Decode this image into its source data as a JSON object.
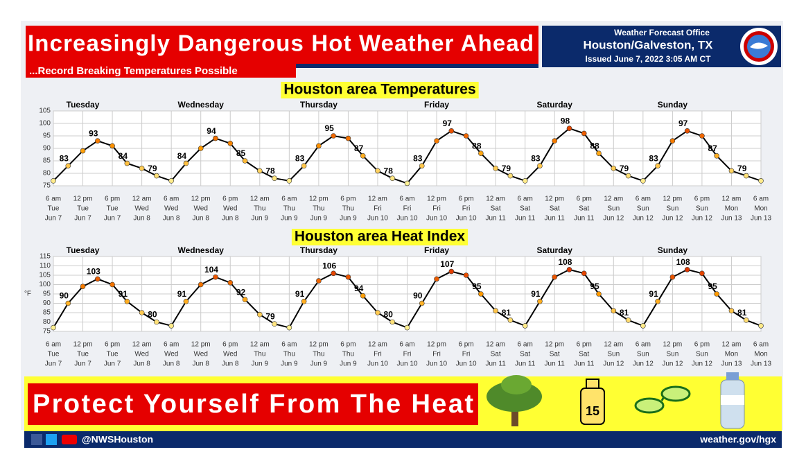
{
  "header": {
    "title": "Increasingly Dangerous Hot Weather Ahead",
    "subtitle": "...Record Breaking Temperatures Possible",
    "office": "Weather Forecast Office",
    "location": "Houston/Galveston, TX",
    "issued": "Issued June 7, 2022 3:05 AM CT"
  },
  "banner": "Protect Yourself From The Heat",
  "footer": {
    "handle": "@NWSHouston",
    "site": "weather.gov/hgx"
  },
  "chart_data": [
    {
      "type": "line",
      "title": "Houston area Temperatures",
      "day_labels": [
        "Tuesday",
        "Wednesday",
        "Thursday",
        "Friday",
        "Saturday",
        "Sunday"
      ],
      "x": [
        0,
        3,
        6,
        9,
        12,
        15,
        18,
        21,
        24,
        27,
        30,
        33,
        36,
        39,
        42,
        45,
        48,
        51,
        54,
        57,
        60,
        63,
        66,
        69,
        72,
        75,
        78,
        81,
        84,
        87,
        90,
        93,
        96,
        99,
        102,
        105,
        108,
        111,
        114,
        117,
        120,
        123,
        126,
        129,
        132,
        135,
        138,
        141,
        144
      ],
      "series": [
        {
          "name": "Temperature",
          "color": "#000000",
          "values": [
            77,
            83,
            89,
            93,
            91,
            84,
            82,
            79,
            77,
            84,
            90,
            94,
            92,
            85,
            81,
            78,
            77,
            83,
            91,
            95,
            94,
            87,
            81,
            78,
            76,
            83,
            93,
            97,
            95,
            88,
            82,
            79,
            77,
            83,
            93,
            98,
            96,
            88,
            82,
            79,
            77,
            83,
            93,
            97,
            95,
            87,
            81,
            79,
            77
          ]
        }
      ],
      "labels": {
        "x": [
          3,
          9,
          15,
          21,
          27,
          33,
          39,
          45,
          51,
          57,
          63,
          69,
          75,
          81,
          87,
          93,
          99,
          105,
          111,
          117,
          123,
          129,
          135,
          141
        ],
        "values": [
          83,
          93,
          84,
          79,
          84,
          94,
          85,
          78,
          83,
          95,
          87,
          78,
          83,
          97,
          88,
          79,
          83,
          98,
          88,
          79,
          83,
          97,
          87,
          79
        ]
      },
      "point_color_scale": [
        "#fff8a0",
        "#ff9a00",
        "#d00000"
      ],
      "xlim": [
        0,
        144
      ],
      "ylim": [
        75,
        105
      ],
      "yticks": [
        75,
        80,
        85,
        90,
        95,
        100,
        105
      ],
      "grid": true,
      "xticks": [
        {
          "value": 0,
          "label": "6 am"
        },
        {
          "value": 6,
          "label": "12 pm"
        },
        {
          "value": 12,
          "label": "6 pm"
        },
        {
          "value": 18,
          "label": "12 am"
        },
        {
          "value": 24,
          "label": "6 am"
        },
        {
          "value": 30,
          "label": "12 pm"
        },
        {
          "value": 36,
          "label": "6 pm"
        },
        {
          "value": 42,
          "label": "12 am"
        },
        {
          "value": 48,
          "label": "6 am"
        },
        {
          "value": 54,
          "label": "12 pm"
        },
        {
          "value": 60,
          "label": "6 pm"
        },
        {
          "value": 66,
          "label": "12 am"
        },
        {
          "value": 72,
          "label": "6 am"
        },
        {
          "value": 78,
          "label": "12 pm"
        },
        {
          "value": 84,
          "label": "6 pm"
        },
        {
          "value": 90,
          "label": "12 am"
        },
        {
          "value": 96,
          "label": "6 am"
        },
        {
          "value": 102,
          "label": "12 pm"
        },
        {
          "value": 108,
          "label": "6 pm"
        },
        {
          "value": 114,
          "label": "12 am"
        },
        {
          "value": 120,
          "label": "6 am"
        },
        {
          "value": 126,
          "label": "12 pm"
        },
        {
          "value": 132,
          "label": "6 pm"
        },
        {
          "value": 138,
          "label": "12 am"
        },
        {
          "value": 144,
          "label": "6 am"
        }
      ],
      "xtick_weekdays": [
        "Tue",
        "Tue",
        "Tue",
        "Wed",
        "Wed",
        "Wed",
        "Wed",
        "Thu",
        "Thu",
        "Thu",
        "Thu",
        "Fri",
        "Fri",
        "Fri",
        "Fri",
        "Sat",
        "Sat",
        "Sat",
        "Sat",
        "Sun",
        "Sun",
        "Sun",
        "Sun",
        "Mon",
        "Mon"
      ],
      "xtick_dates": [
        "Jun 7",
        "Jun 7",
        "Jun 7",
        "Jun 8",
        "Jun 8",
        "Jun 8",
        "Jun 8",
        "Jun 9",
        "Jun 9",
        "Jun 9",
        "Jun 9",
        "Jun 10",
        "Jun 10",
        "Jun 10",
        "Jun 10",
        "Jun 11",
        "Jun 11",
        "Jun 11",
        "Jun 11",
        "Jun 12",
        "Jun 12",
        "Jun 12",
        "Jun 12",
        "Jun 13",
        "Jun 13"
      ]
    },
    {
      "type": "line",
      "title": "Houston area Heat Index",
      "ylabel": "°F",
      "day_labels": [
        "Tuesday",
        "Wednesday",
        "Thursday",
        "Friday",
        "Saturday",
        "Sunday"
      ],
      "x": [
        0,
        3,
        6,
        9,
        12,
        15,
        18,
        21,
        24,
        27,
        30,
        33,
        36,
        39,
        42,
        45,
        48,
        51,
        54,
        57,
        60,
        63,
        66,
        69,
        72,
        75,
        78,
        81,
        84,
        87,
        90,
        93,
        96,
        99,
        102,
        105,
        108,
        111,
        114,
        117,
        120,
        123,
        126,
        129,
        132,
        135,
        138,
        141,
        144
      ],
      "series": [
        {
          "name": "Heat Index",
          "color": "#000000",
          "values": [
            77,
            90,
            99,
            103,
            100,
            91,
            85,
            80,
            78,
            91,
            100,
            104,
            101,
            92,
            84,
            79,
            77,
            91,
            102,
            106,
            104,
            94,
            85,
            80,
            77,
            90,
            103,
            107,
            105,
            95,
            86,
            81,
            78,
            91,
            104,
            108,
            106,
            95,
            86,
            81,
            78,
            91,
            104,
            108,
            106,
            95,
            86,
            81,
            78
          ]
        }
      ],
      "labels": {
        "x": [
          3,
          9,
          15,
          21,
          27,
          33,
          39,
          45,
          51,
          57,
          63,
          69,
          75,
          81,
          87,
          93,
          99,
          105,
          111,
          117,
          123,
          129,
          135,
          141
        ],
        "values": [
          90,
          103,
          91,
          80,
          91,
          104,
          92,
          79,
          91,
          106,
          94,
          80,
          90,
          107,
          95,
          81,
          91,
          108,
          95,
          81,
          91,
          108,
          95,
          81
        ]
      },
      "point_color_scale": [
        "#fff8a0",
        "#ff9a00",
        "#d00000"
      ],
      "xlim": [
        0,
        144
      ],
      "ylim": [
        75,
        115
      ],
      "yticks": [
        75,
        80,
        85,
        90,
        95,
        100,
        105,
        110,
        115
      ],
      "grid": true,
      "xticks": [
        {
          "value": 0,
          "label": "6 am"
        },
        {
          "value": 6,
          "label": "12 pm"
        },
        {
          "value": 12,
          "label": "6 pm"
        },
        {
          "value": 18,
          "label": "12 am"
        },
        {
          "value": 24,
          "label": "6 am"
        },
        {
          "value": 30,
          "label": "12 pm"
        },
        {
          "value": 36,
          "label": "6 pm"
        },
        {
          "value": 42,
          "label": "12 am"
        },
        {
          "value": 48,
          "label": "6 am"
        },
        {
          "value": 54,
          "label": "12 pm"
        },
        {
          "value": 60,
          "label": "6 pm"
        },
        {
          "value": 66,
          "label": "12 am"
        },
        {
          "value": 72,
          "label": "6 am"
        },
        {
          "value": 78,
          "label": "12 pm"
        },
        {
          "value": 84,
          "label": "6 pm"
        },
        {
          "value": 90,
          "label": "12 am"
        },
        {
          "value": 96,
          "label": "6 am"
        },
        {
          "value": 102,
          "label": "12 pm"
        },
        {
          "value": 108,
          "label": "6 pm"
        },
        {
          "value": 114,
          "label": "12 am"
        },
        {
          "value": 120,
          "label": "6 am"
        },
        {
          "value": 126,
          "label": "12 pm"
        },
        {
          "value": 132,
          "label": "6 pm"
        },
        {
          "value": 138,
          "label": "12 am"
        },
        {
          "value": 144,
          "label": "6 am"
        }
      ],
      "xtick_weekdays": [
        "Tue",
        "Tue",
        "Tue",
        "Wed",
        "Wed",
        "Wed",
        "Wed",
        "Thu",
        "Thu",
        "Thu",
        "Thu",
        "Fri",
        "Fri",
        "Fri",
        "Fri",
        "Sat",
        "Sat",
        "Sat",
        "Sat",
        "Sun",
        "Sun",
        "Sun",
        "Sun",
        "Mon",
        "Mon"
      ],
      "xtick_dates": [
        "Jun 7",
        "Jun 7",
        "Jun 7",
        "Jun 8",
        "Jun 8",
        "Jun 8",
        "Jun 8",
        "Jun 9",
        "Jun 9",
        "Jun 9",
        "Jun 9",
        "Jun 10",
        "Jun 10",
        "Jun 10",
        "Jun 10",
        "Jun 11",
        "Jun 11",
        "Jun 11",
        "Jun 11",
        "Jun 12",
        "Jun 12",
        "Jun 12",
        "Jun 12",
        "Jun 13",
        "Jun 13"
      ]
    }
  ]
}
